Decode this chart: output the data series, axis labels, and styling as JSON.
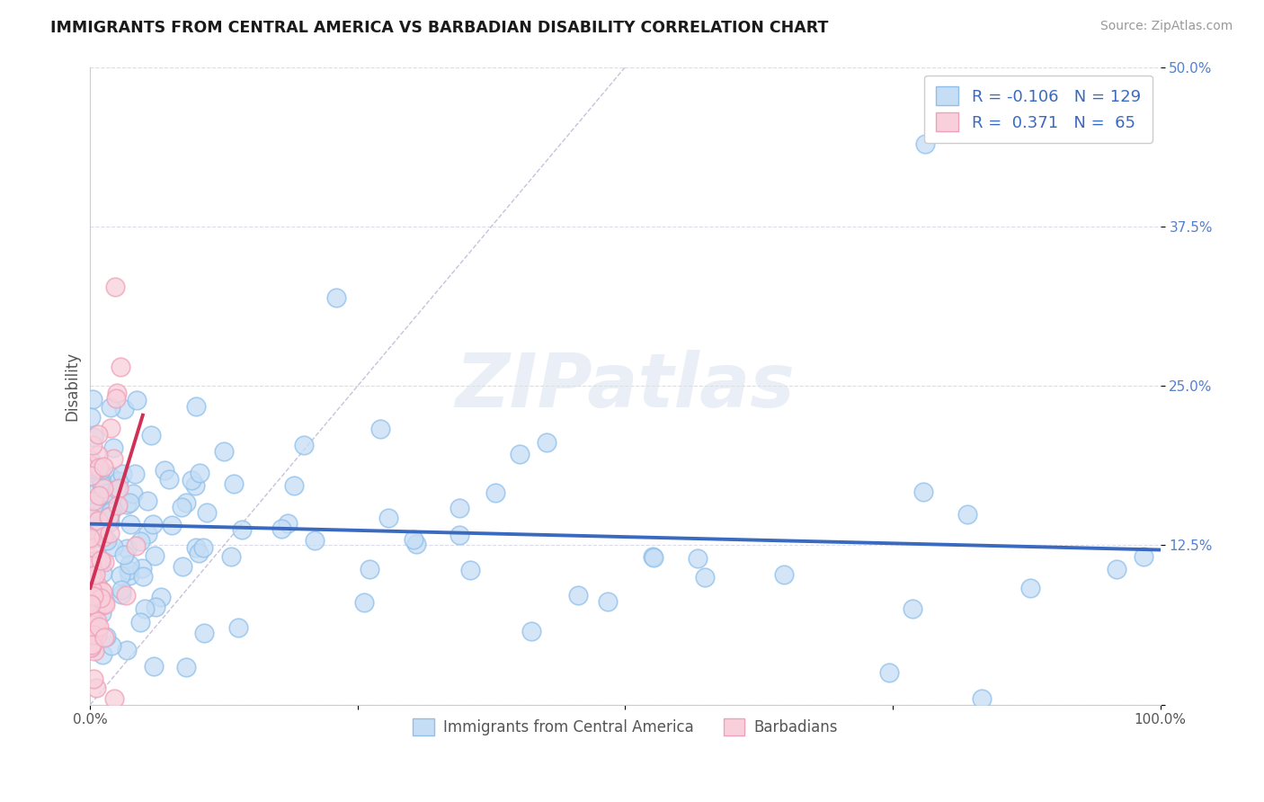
{
  "title": "IMMIGRANTS FROM CENTRAL AMERICA VS BARBADIAN DISABILITY CORRELATION CHART",
  "source": "Source: ZipAtlas.com",
  "ylabel": "Disability",
  "xlim": [
    0,
    1.0
  ],
  "ylim": [
    0,
    0.5
  ],
  "xticks": [
    0,
    0.25,
    0.5,
    0.75,
    1.0
  ],
  "xtick_labels": [
    "0.0%",
    "",
    "",
    "",
    "100.0%"
  ],
  "yticks": [
    0.0,
    0.125,
    0.25,
    0.375,
    0.5
  ],
  "ytick_labels": [
    "",
    "12.5%",
    "25.0%",
    "37.5%",
    "50.0%"
  ],
  "blue_color": "#90c0ea",
  "blue_fill_color": "#c5ddf5",
  "blue_line_color": "#3a6abf",
  "pink_color": "#f0a0b8",
  "pink_fill_color": "#f8d0dc",
  "pink_line_color": "#d03055",
  "diag_line_color": "#c0bcd8",
  "legend_R_blue": "-0.106",
  "legend_N_blue": "129",
  "legend_R_pink": "0.371",
  "legend_N_pink": "65",
  "legend_label_blue": "Immigrants from Central America",
  "legend_label_pink": "Barbadians",
  "watermark": "ZIPatlas",
  "ytick_color": "#5580cc"
}
